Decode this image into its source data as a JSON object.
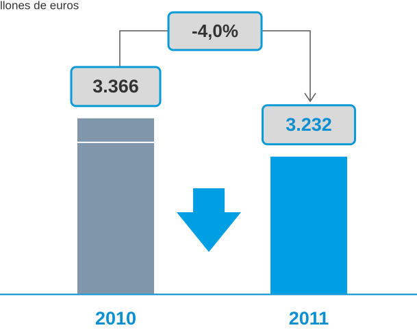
{
  "chart_data": {
    "type": "bar",
    "title": "llones de euros",
    "categories": [
      "2010",
      "2011"
    ],
    "values": [
      3366,
      3232
    ],
    "value_labels": [
      "3.366",
      "3.232"
    ],
    "colors": [
      "#8096aa",
      "#009fe3"
    ],
    "ylim": [
      2750,
      3780
    ],
    "annotation": "-4,0%"
  }
}
